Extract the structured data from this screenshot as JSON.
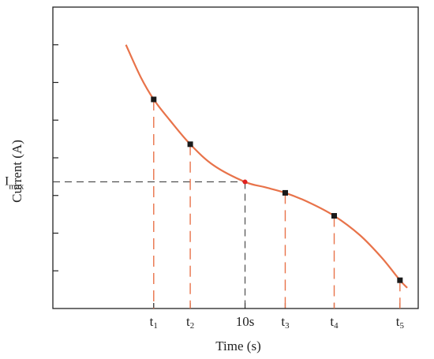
{
  "chart_data": {
    "type": "line",
    "title": "",
    "xlabel": "Time (s)",
    "ylabel": "Current (A)",
    "x_ticks": [
      {
        "key": "t1",
        "base": "t",
        "sub": "1",
        "x": 1.38
      },
      {
        "key": "t2",
        "base": "t",
        "sub": "2",
        "x": 1.88
      },
      {
        "key": "10s",
        "base": "10s",
        "sub": "",
        "x": 2.63
      },
      {
        "key": "t3",
        "base": "t",
        "sub": "3",
        "x": 3.18
      },
      {
        "key": "t4",
        "base": "t",
        "sub": "4",
        "x": 3.85
      },
      {
        "key": "t5",
        "base": "t",
        "sub": "5",
        "x": 4.75
      }
    ],
    "y_marker": {
      "base": "I",
      "sub": "max",
      "y": 3.36
    },
    "xlim": [
      0,
      5
    ],
    "ylim": [
      0,
      8
    ],
    "y_minor_ticks": [
      1,
      2,
      3,
      4,
      5,
      6,
      7
    ],
    "grid": false,
    "legend": "none",
    "curve": {
      "x": [
        1.0,
        1.2,
        1.38,
        1.6,
        1.88,
        2.2,
        2.63,
        2.9,
        3.18,
        3.5,
        3.85,
        4.2,
        4.5,
        4.75,
        4.85
      ],
      "y": [
        7.0,
        6.15,
        5.55,
        5.0,
        4.36,
        3.8,
        3.36,
        3.22,
        3.07,
        2.82,
        2.46,
        1.95,
        1.35,
        0.75,
        0.55
      ]
    },
    "points": [
      {
        "x": 1.38,
        "y": 5.55,
        "marker": "square"
      },
      {
        "x": 1.88,
        "y": 4.36,
        "marker": "square"
      },
      {
        "x": 2.63,
        "y": 3.36,
        "marker": "dot"
      },
      {
        "x": 3.18,
        "y": 3.07,
        "marker": "square"
      },
      {
        "x": 3.85,
        "y": 2.46,
        "marker": "square"
      },
      {
        "x": 4.75,
        "y": 0.75,
        "marker": "square"
      }
    ],
    "colors": {
      "curve": "#e8734a",
      "drop_lines": "#e8734a",
      "imax_guide": "#333333",
      "marker_square": "#1a1a1a",
      "marker_dot": "#e02020",
      "axis": "#222222"
    }
  }
}
